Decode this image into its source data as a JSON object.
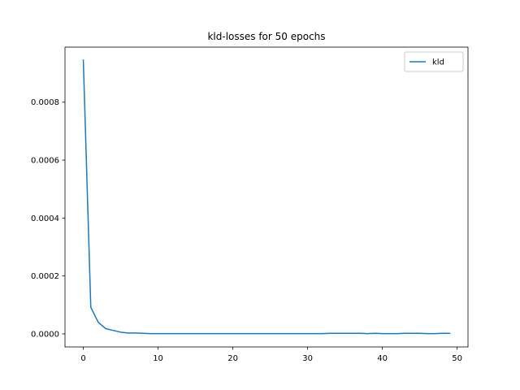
{
  "chart_data": {
    "type": "line",
    "title": "kld-losses for 50 epochs",
    "xlabel": "",
    "ylabel": "",
    "xlim": [
      -2.45,
      51.45
    ],
    "ylim": [
      -4.5e-05,
      0.00099
    ],
    "xticks": [
      0,
      10,
      20,
      30,
      40,
      50
    ],
    "xtick_labels": [
      "0",
      "10",
      "20",
      "30",
      "40",
      "50"
    ],
    "yticks": [
      0.0,
      0.0002,
      0.0004,
      0.0006,
      0.0008
    ],
    "ytick_labels": [
      "0.0000",
      "0.0002",
      "0.0004",
      "0.0006",
      "0.0008"
    ],
    "grid": false,
    "legend_position": "top-right",
    "series": [
      {
        "name": "kld",
        "color": "#1f77b4",
        "x": [
          0,
          1,
          2,
          3,
          4,
          5,
          6,
          7,
          8,
          9,
          10,
          11,
          12,
          13,
          14,
          15,
          16,
          17,
          18,
          19,
          20,
          21,
          22,
          23,
          24,
          25,
          26,
          27,
          28,
          29,
          30,
          31,
          32,
          33,
          34,
          35,
          36,
          37,
          38,
          39,
          40,
          41,
          42,
          43,
          44,
          45,
          46,
          47,
          48,
          49
        ],
        "y": [
          0.000945,
          9.2e-05,
          4e-05,
          1.8e-05,
          1.2e-05,
          6e-06,
          3e-06,
          3e-06,
          2e-06,
          1e-06,
          1e-06,
          1e-06,
          1e-06,
          1e-06,
          1e-06,
          1e-06,
          1e-06,
          1e-06,
          1e-06,
          1e-06,
          1e-06,
          1e-06,
          1e-06,
          1e-06,
          1e-06,
          1e-06,
          1e-06,
          1e-06,
          1e-06,
          1e-06,
          1e-06,
          1e-06,
          1e-06,
          2e-06,
          2e-06,
          2e-06,
          2e-06,
          2e-06,
          1e-06,
          2e-06,
          1e-06,
          1e-06,
          1e-06,
          2e-06,
          2e-06,
          2e-06,
          1e-06,
          1e-06,
          2e-06,
          2e-06
        ]
      }
    ]
  }
}
